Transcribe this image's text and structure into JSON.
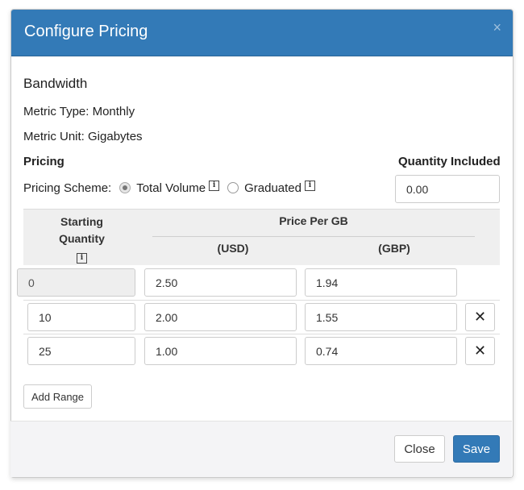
{
  "modal": {
    "title": "Configure Pricing",
    "close_glyph": "×"
  },
  "section": {
    "title": "Bandwidth",
    "metric_type": "Metric Type: Monthly",
    "metric_unit": "Metric Unit: Gigabytes"
  },
  "pricing": {
    "label": "Pricing",
    "scheme_label": "Pricing Scheme:",
    "options": [
      {
        "label": "Total Volume",
        "selected": true
      },
      {
        "label": "Graduated",
        "selected": false
      }
    ]
  },
  "quantity_included": {
    "label": "Quantity Included",
    "value": "0.00"
  },
  "table": {
    "headers": {
      "starting_quantity_line1": "Starting",
      "starting_quantity_line2": "Quantity",
      "price_per": "Price Per GB",
      "currency_usd": "(USD)",
      "currency_gbp": "(GBP)"
    },
    "rows": [
      {
        "start": "0",
        "usd": "2.50",
        "gbp": "1.94",
        "deletable": false
      },
      {
        "start": "10",
        "usd": "2.00",
        "gbp": "1.55",
        "deletable": true
      },
      {
        "start": "25",
        "usd": "1.00",
        "gbp": "0.74",
        "deletable": true
      }
    ],
    "delete_glyph": "✕"
  },
  "buttons": {
    "add_range": "Add Range",
    "close": "Close",
    "save": "Save"
  },
  "info_glyph": "i",
  "colors": {
    "header_blue": "#337ab7",
    "primary": "#337ab7"
  }
}
